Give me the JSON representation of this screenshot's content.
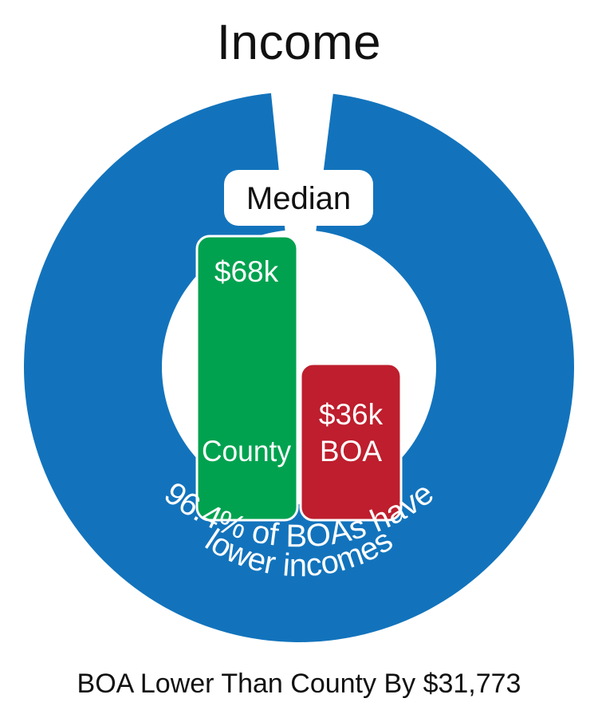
{
  "title": "Income",
  "footer": "BOA Lower Than County By $31,773",
  "colors": {
    "ring": "#1273bc",
    "county": "#00a24f",
    "boa": "#be1e2d",
    "background": "#ffffff"
  },
  "chart_data": {
    "type": "bar",
    "badge": "Median",
    "categories": [
      "County",
      "BOA"
    ],
    "values": [
      68000,
      36000
    ],
    "value_labels": [
      "$68k",
      "$36k"
    ],
    "ring_label_line1": "96.4% of BOAs have",
    "ring_label_line2": "lower incomes",
    "ring_share": 96.4,
    "ylim": [
      0,
      68000
    ]
  }
}
